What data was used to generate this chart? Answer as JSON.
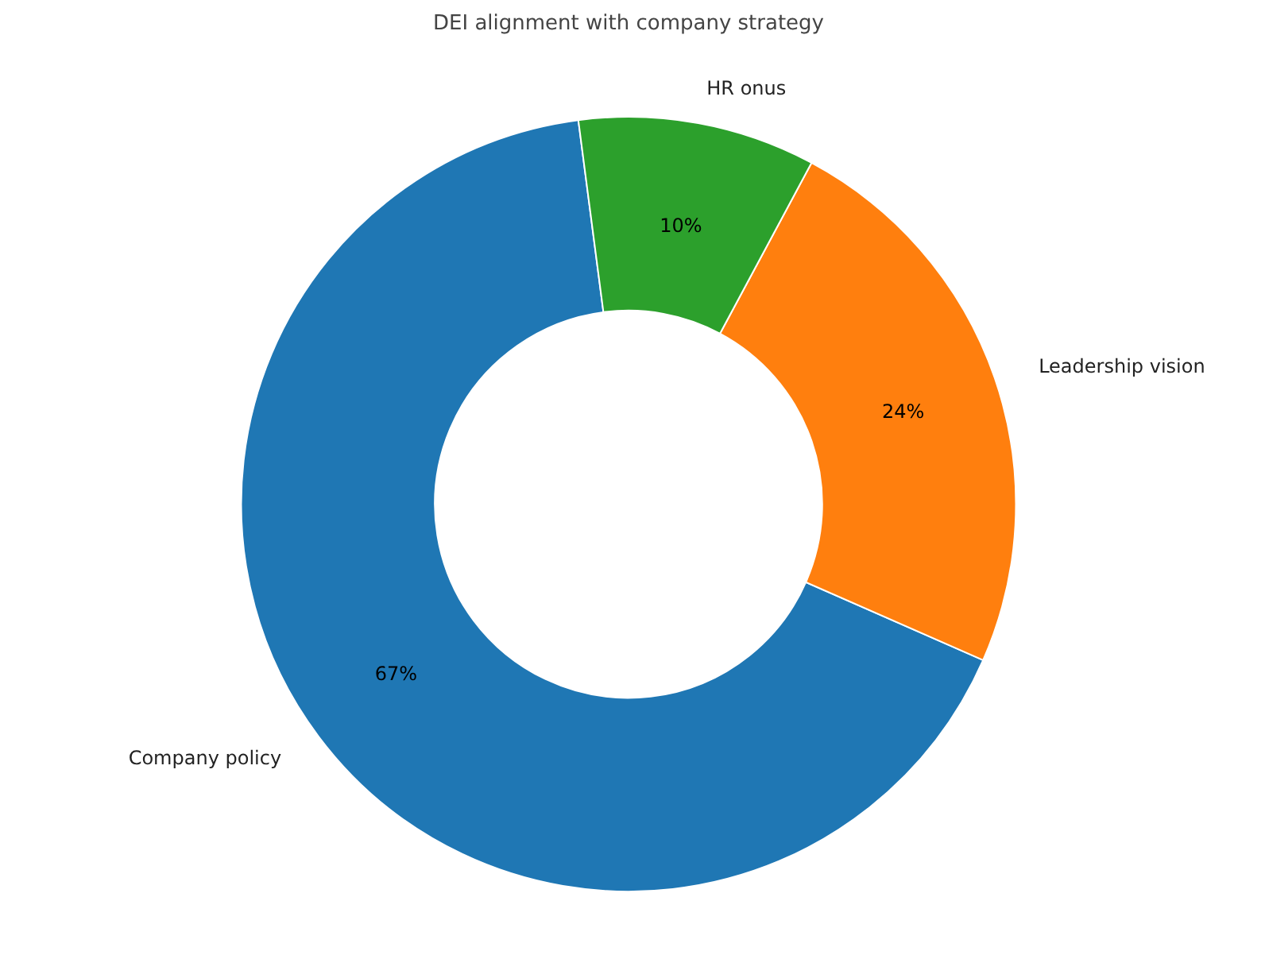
{
  "chart_data": {
    "type": "donut",
    "title": "DEI alignment with company strategy",
    "categories": [
      "Company policy",
      "Leadership vision",
      "HR onus"
    ],
    "values": [
      67,
      24,
      10
    ],
    "colors": [
      "#1f77b4",
      "#ff7f0e",
      "#2ca02c"
    ],
    "value_labels": [
      "67%",
      "24%",
      "10%"
    ]
  }
}
